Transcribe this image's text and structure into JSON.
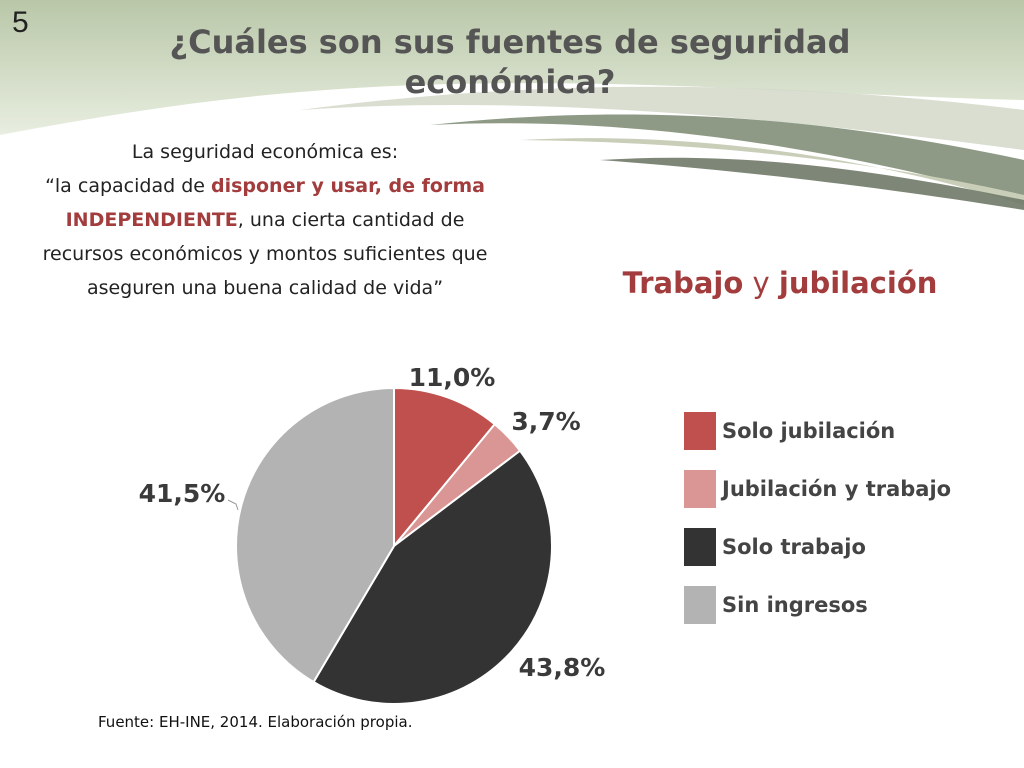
{
  "slide_number": "5",
  "title": "¿Cuáles son sus fuentes de seguridad económica?",
  "definition": {
    "intro": "La seguridad económica es:",
    "quote_start": "“la capacidad de ",
    "highlight": "disponer y usar, de forma INDEPENDIENTE",
    "quote_end": ", una cierta cantidad de recursos económicos y montos suficientes que aseguren una buena calidad de vida”"
  },
  "subtitle": {
    "part1": "Trabajo",
    "connector": "y",
    "part2": "jubilación"
  },
  "source": "Fuente: EH-INE, 2014. Elaboración propia.",
  "chart_data": {
    "type": "pie",
    "title": "",
    "legend_position": "right",
    "slices": [
      {
        "name": "Solo jubilación",
        "value": 11.0,
        "label": "11,0%",
        "color": "#c0504d"
      },
      {
        "name": "Jubilación y trabajo",
        "value": 3.7,
        "label": "3,7%",
        "color": "#d99694"
      },
      {
        "name": "Solo trabajo",
        "value": 43.8,
        "label": "43,8%",
        "color": "#333333"
      },
      {
        "name": "Sin ingresos",
        "value": 41.5,
        "label": "41,5%",
        "color": "#b3b3b3"
      }
    ]
  }
}
